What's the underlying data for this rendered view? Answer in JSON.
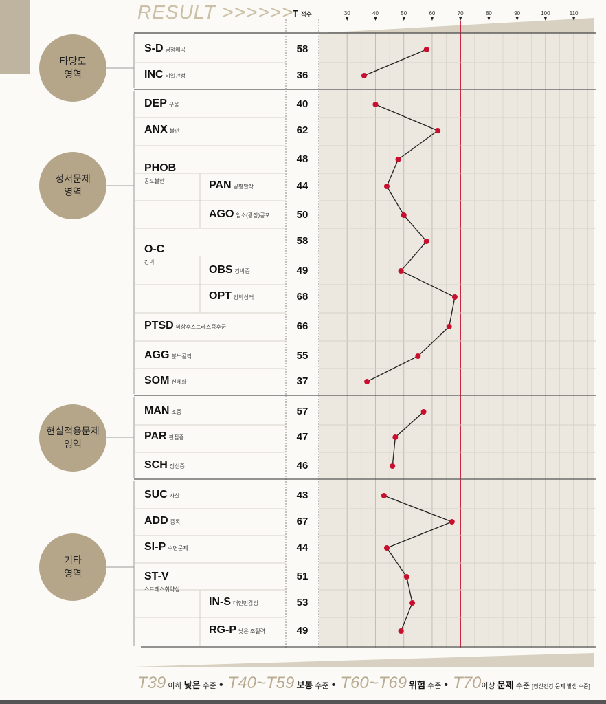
{
  "header": {
    "result": "RESULT >>>>>>",
    "t_label": "T",
    "t_sub": "점수"
  },
  "groups": [
    {
      "line1": "타당도",
      "line2": "영역"
    },
    {
      "line1": "정서문제",
      "line2": "영역"
    },
    {
      "line1": "현실적응문제",
      "line2": "영역"
    },
    {
      "line1": "기타",
      "line2": "영역"
    }
  ],
  "rows": [
    {
      "code": "S-D",
      "sub": "긍정왜곡",
      "score": "58"
    },
    {
      "code": "INC",
      "sub": "비일관성",
      "score": "36"
    },
    {
      "code": "DEP",
      "sub": "우울",
      "score": "40"
    },
    {
      "code": "ANX",
      "sub": "불안",
      "score": "62"
    },
    {
      "code": "",
      "sub": "",
      "score": "48"
    },
    {
      "code": "PAN",
      "sub": "공황발작",
      "score": "44"
    },
    {
      "code": "AGO",
      "sub": "임소(광장)공포",
      "score": "50"
    },
    {
      "code": "",
      "sub": "",
      "score": "58"
    },
    {
      "code": "OBS",
      "sub": "강박증",
      "score": "49"
    },
    {
      "code": "OPT",
      "sub": "강박성격",
      "score": "68"
    },
    {
      "code": "PTSD",
      "sub": "외상후스트레스증후군",
      "score": "66"
    },
    {
      "code": "AGG",
      "sub": "분노공격",
      "score": "55"
    },
    {
      "code": "SOM",
      "sub": "신체화",
      "score": "37"
    },
    {
      "code": "MAN",
      "sub": "조증",
      "score": "57"
    },
    {
      "code": "PAR",
      "sub": "편집증",
      "score": "47"
    },
    {
      "code": "SCH",
      "sub": "정신증",
      "score": "46"
    },
    {
      "code": "SUC",
      "sub": "자살",
      "score": "43"
    },
    {
      "code": "ADD",
      "sub": "중독",
      "score": "67"
    },
    {
      "code": "SI-P",
      "sub": "수면문제",
      "score": "44"
    },
    {
      "code": "",
      "sub": "",
      "score": "51"
    },
    {
      "code": "IN-S",
      "sub": "대인민감성",
      "score": "53"
    },
    {
      "code": "RG-P",
      "sub": "낮은 조절력",
      "score": "49"
    }
  ],
  "parents": [
    {
      "code": "PHOB",
      "sub": "공포불안"
    },
    {
      "code": "O-C",
      "sub": "강박"
    },
    {
      "code": "ST-V",
      "sub": "스트레스취약성"
    }
  ],
  "legend": {
    "t1": "T39",
    "t1_text": "이하",
    "t1_level": "낮은",
    "t1_suffix": "수준",
    "t2": "T40~T59",
    "t2_level": "보통",
    "t2_suffix": "수준",
    "t3": "T60~T69",
    "t3_level": "위험",
    "t3_suffix": "수준",
    "t4": "T70",
    "t4_text": "이상",
    "t4_level": "문제",
    "t4_suffix": "수준",
    "t4_note": "[정신건강 문제 발생 수준]"
  },
  "chart_data": {
    "type": "line",
    "orientation": "horizontal",
    "x_ticks": [
      30,
      40,
      50,
      60,
      70,
      80,
      90,
      100,
      110
    ],
    "xlim": [
      20,
      117
    ],
    "reference_line": 70,
    "series_segments": [
      {
        "values": [
          58,
          36
        ]
      },
      {
        "values": [
          40,
          62,
          48,
          44,
          50,
          58,
          49,
          68,
          66,
          55,
          37
        ]
      },
      {
        "values": [
          57,
          47,
          46
        ]
      },
      {
        "values": [
          43,
          67,
          44,
          51,
          53,
          49
        ]
      }
    ],
    "colors": {
      "line": "#222222",
      "point": "#c8102e",
      "reference": "#c8102e",
      "background": "#ece8e0"
    }
  }
}
